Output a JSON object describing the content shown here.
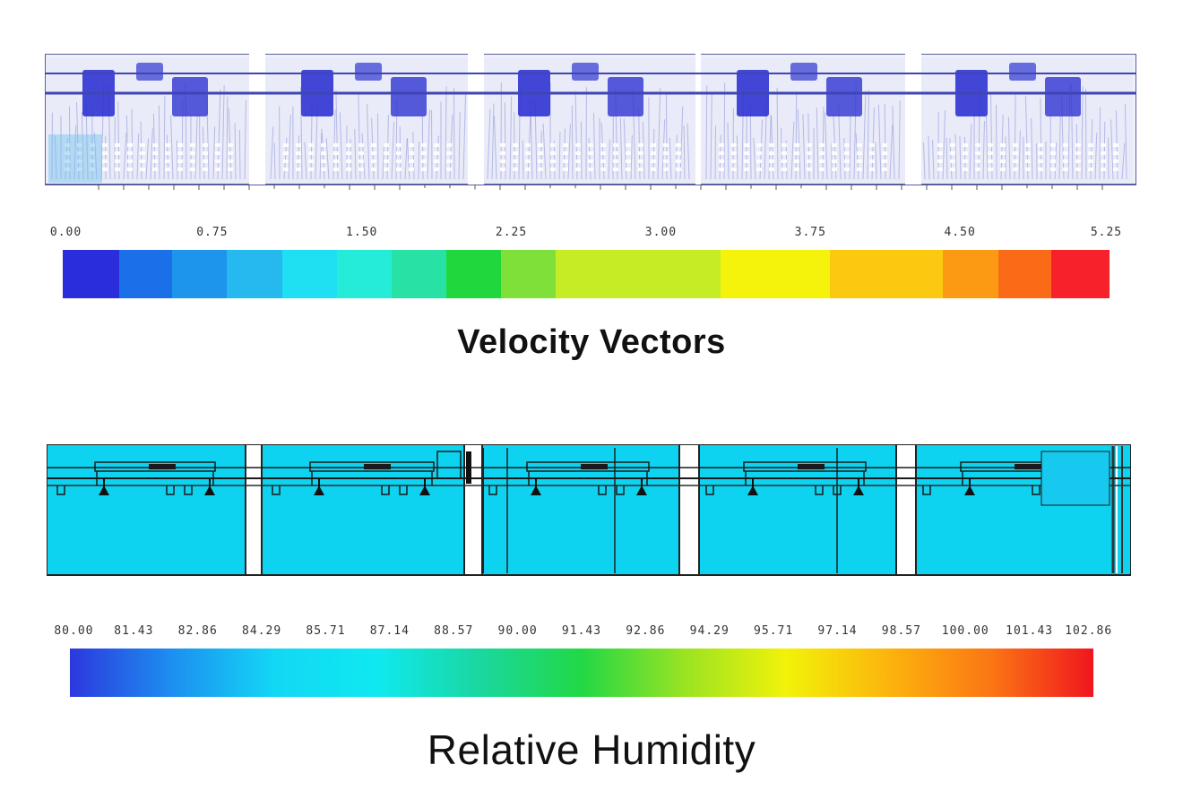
{
  "velocity": {
    "title": "Velocity Vectors",
    "tick_labels": [
      "0.00",
      "0.75",
      "1.50",
      "2.25",
      "3.00",
      "3.75",
      "4.50",
      "5.25"
    ],
    "colormap": [
      "#2a2ddc",
      "#1b6fe8",
      "#1d95ec",
      "#25b9f0",
      "#1ee0f2",
      "#25ecd8",
      "#27e2a4",
      "#20d83e",
      "#7fe03a",
      "#c6ec25",
      "#f5f20c",
      "#fcc911",
      "#fd9a13",
      "#fb6a16",
      "#f7212b"
    ],
    "panel_count": 5
  },
  "humidity": {
    "title": "Relative Humidity",
    "tick_labels": [
      "80.00",
      "81.43",
      "82.86",
      "84.29",
      "85.71",
      "87.14",
      "88.57",
      "90.00",
      "91.43",
      "92.86",
      "94.29",
      "95.71",
      "97.14",
      "98.57",
      "100.00",
      "101.43",
      "102.86"
    ],
    "colormap": [
      "#2c38dd",
      "#1d8ff0",
      "#12d7f5",
      "#0fe9f0",
      "#1ad7a0",
      "#22d845",
      "#99e323",
      "#f2f209",
      "#fcb40d",
      "#fb7614",
      "#f0161e"
    ],
    "fill_color": "#0ed3f0",
    "panel_count": 5
  }
}
